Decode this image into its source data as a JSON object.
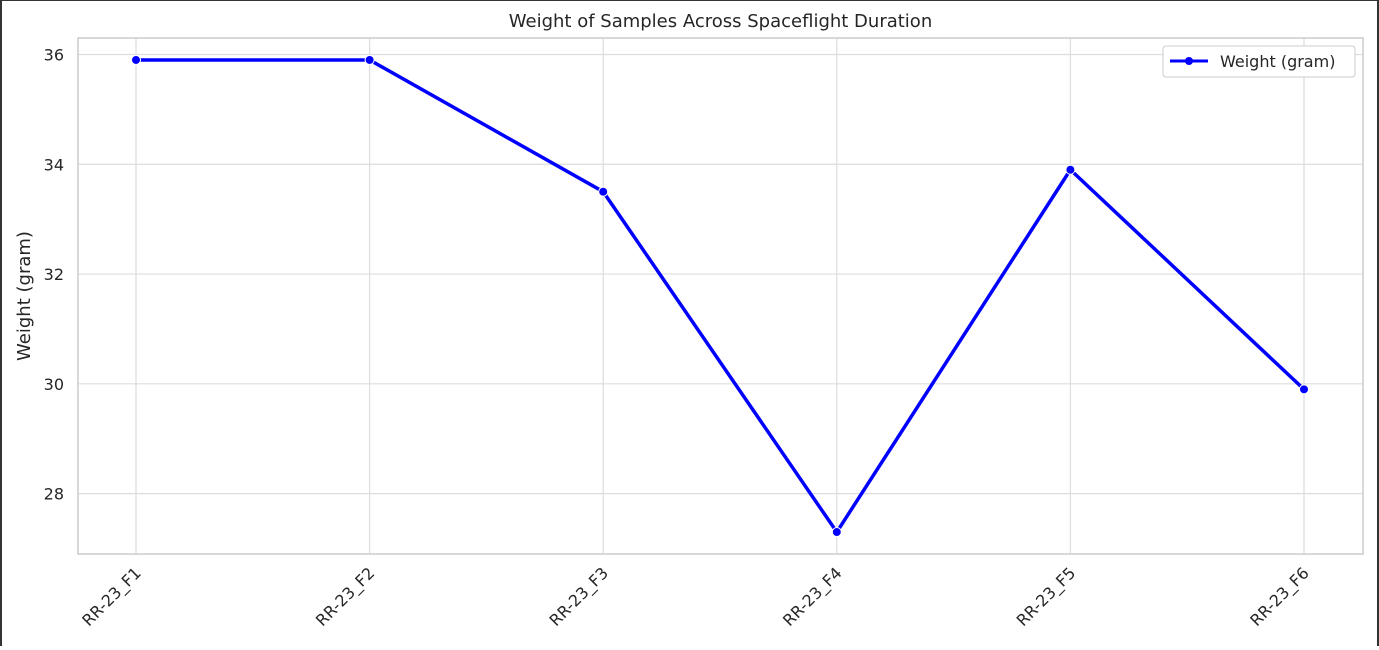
{
  "chart_data": {
    "type": "line",
    "title": "Weight of Samples Across Spaceflight Duration",
    "xlabel": "",
    "ylabel": "Weight (gram)",
    "categories": [
      "RR-23_F1",
      "RR-23_F2",
      "RR-23_F3",
      "RR-23_F4",
      "RR-23_F5",
      "RR-23_F6"
    ],
    "series": [
      {
        "name": "Weight (gram)",
        "values": [
          35.9,
          35.9,
          33.5,
          27.3,
          33.9,
          29.9
        ],
        "color": "#0000ff",
        "marker": "circle"
      }
    ],
    "ylim": [
      26.9,
      36.3
    ],
    "yticks": [
      28,
      30,
      32,
      34,
      36
    ],
    "grid": true,
    "legend_position": "top-right"
  }
}
